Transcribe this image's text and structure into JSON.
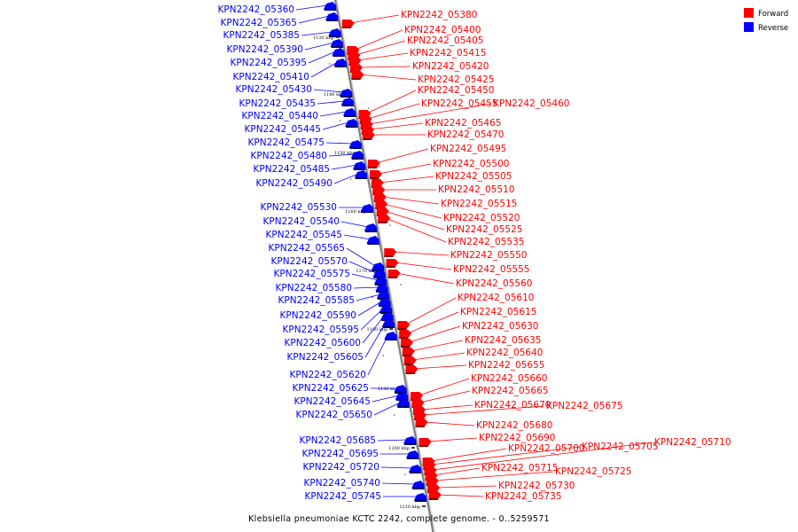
{
  "colors": {
    "forward": "#ff0000",
    "reverse": "#0000ff",
    "axis": "#808080"
  },
  "legend": [
    {
      "label": "Forward",
      "color": "#ff0000"
    },
    {
      "label": "Reverse",
      "color": "#0000ff"
    }
  ],
  "caption": "Klebsiella pneumoniae KCTC 2242, complete genome. - 0..5259571",
  "kbp_ticks": [
    "1130 kbp",
    "1140 kbp",
    "1150 kbp",
    "1160 kbp",
    "1170 kbp",
    "1180 kbp",
    "1190 kbp",
    "1200 kbp",
    "1210 kbp"
  ],
  "reverse_genes": [
    "KPN2242_05360",
    "KPN2242_05365",
    "KPN2242_05385",
    "KPN2242_05390",
    "KPN2242_05395",
    "KPN2242_05410",
    "KPN2242_05430",
    "KPN2242_05435",
    "KPN2242_05440",
    "KPN2242_05445",
    "KPN2242_05475",
    "KPN2242_05480",
    "KPN2242_05485",
    "KPN2242_05490",
    "KPN2242_05530",
    "KPN2242_05540",
    "KPN2242_05545",
    "KPN2242_05565",
    "KPN2242_05570",
    "KPN2242_05575",
    "KPN2242_05580",
    "KPN2242_05585",
    "KPN2242_05590",
    "KPN2242_05595",
    "KPN2242_05600",
    "KPN2242_05605",
    "KPN2242_05620",
    "KPN2242_05625",
    "KPN2242_05645",
    "KPN2242_05650",
    "KPN2242_05685",
    "KPN2242_05695",
    "KPN2242_05720",
    "KPN2242_05740",
    "KPN2242_05745"
  ],
  "forward_genes": [
    "KPN2242_05380",
    "KPN2242_05400",
    "KPN2242_05405",
    "KPN2242_05415",
    "KPN2242_05420",
    "KPN2242_05425",
    "KPN2242_05450",
    "KPN2242_05455",
    "KPN2242_05460",
    "KPN2242_05465",
    "KPN2242_05470",
    "KPN2242_05495",
    "KPN2242_05500",
    "KPN2242_05505",
    "KPN2242_05510",
    "KPN2242_05515",
    "KPN2242_05520",
    "KPN2242_05525",
    "KPN2242_05535",
    "KPN2242_05550",
    "KPN2242_05555",
    "KPN2242_05560",
    "KPN2242_05610",
    "KPN2242_05615",
    "KPN2242_05630",
    "KPN2242_05635",
    "KPN2242_05640",
    "KPN2242_05655",
    "KPN2242_05660",
    "KPN2242_05665",
    "KPN2242_05670",
    "KPN2242_05675",
    "KPN2242_05680",
    "KPN2242_05690",
    "KPN2242_05700",
    "KPN2242_05705",
    "KPN2242_05710",
    "KPN2242_05715",
    "KPN2242_05725",
    "KPN2242_05730",
    "KPN2242_05735"
  ]
}
